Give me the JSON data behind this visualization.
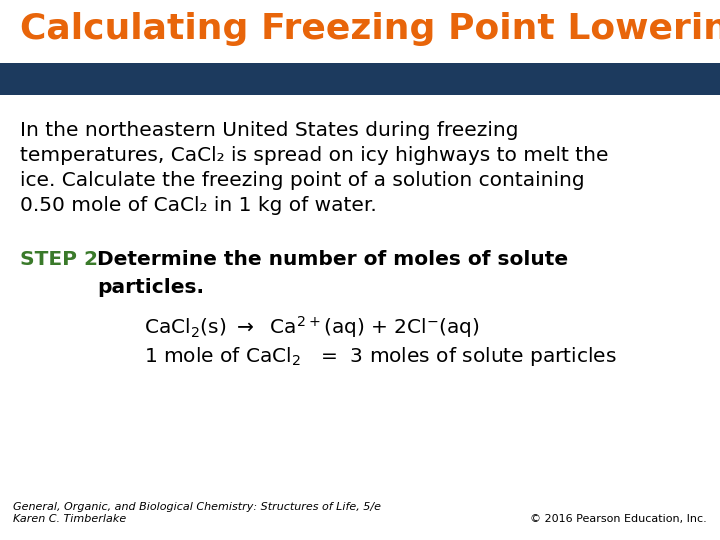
{
  "title": "Calculating Freezing Point Lowering",
  "title_color": "#E8650A",
  "banner_color": "#1C3A5E",
  "background_color": "#FFFFFF",
  "footer_left": "General, Organic, and Biological Chemistry: Structures of Life, 5/e\nKaren C. Timberlake",
  "footer_right": "© 2016 Pearson Education, Inc.",
  "footer_color": "#000000",
  "step_color": "#3A7A2A",
  "body_color": "#000000",
  "title_fontsize": 26,
  "body_fontsize": 14.5,
  "footer_fontsize": 8
}
